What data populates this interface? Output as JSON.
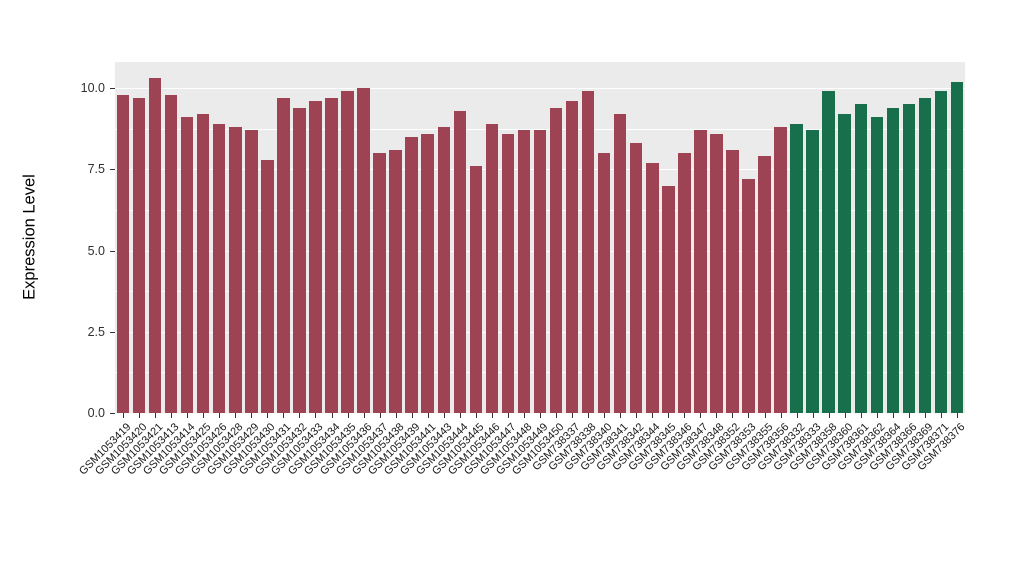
{
  "figure": {
    "background": "#ffffff",
    "panel_background": "#ebebeb",
    "grid_color": "#ffffff"
  },
  "chart_data": {
    "type": "bar",
    "title": "",
    "xlabel": "",
    "ylabel": "Expression Level",
    "ylim": [
      0,
      10.8
    ],
    "yticks": [
      "0.0",
      "2.5",
      "5.0",
      "7.5",
      "10.0"
    ],
    "ytick_values": [
      0,
      2.5,
      5,
      7.5,
      10
    ],
    "minor_tick_step": 1.25,
    "grid": true,
    "legend_position": "none",
    "group_colors": {
      "group1": "#9e4353",
      "group2": "#17704b"
    },
    "bars": [
      {
        "label": "GSM1053419",
        "value": 9.8,
        "group": "group1"
      },
      {
        "label": "GSM1053420",
        "value": 9.7,
        "group": "group1"
      },
      {
        "label": "GSM1053421",
        "value": 10.3,
        "group": "group1"
      },
      {
        "label": "GSM1053413",
        "value": 9.8,
        "group": "group1"
      },
      {
        "label": "GSM1053414",
        "value": 9.1,
        "group": "group1"
      },
      {
        "label": "GSM1053425",
        "value": 9.2,
        "group": "group1"
      },
      {
        "label": "GSM1053426",
        "value": 8.9,
        "group": "group1"
      },
      {
        "label": "GSM1053428",
        "value": 8.8,
        "group": "group1"
      },
      {
        "label": "GSM1053429",
        "value": 8.7,
        "group": "group1"
      },
      {
        "label": "GSM1053430",
        "value": 7.8,
        "group": "group1"
      },
      {
        "label": "GSM1053431",
        "value": 9.7,
        "group": "group1"
      },
      {
        "label": "GSM1053432",
        "value": 9.4,
        "group": "group1"
      },
      {
        "label": "GSM1053433",
        "value": 9.6,
        "group": "group1"
      },
      {
        "label": "GSM1053434",
        "value": 9.7,
        "group": "group1"
      },
      {
        "label": "GSM1053435",
        "value": 9.9,
        "group": "group1"
      },
      {
        "label": "GSM1053436",
        "value": 10.0,
        "group": "group1"
      },
      {
        "label": "GSM1053437",
        "value": 8.0,
        "group": "group1"
      },
      {
        "label": "GSM1053438",
        "value": 8.1,
        "group": "group1"
      },
      {
        "label": "GSM1053439",
        "value": 8.5,
        "group": "group1"
      },
      {
        "label": "GSM1053441",
        "value": 8.6,
        "group": "group1"
      },
      {
        "label": "GSM1053443",
        "value": 8.8,
        "group": "group1"
      },
      {
        "label": "GSM1053444",
        "value": 9.3,
        "group": "group1"
      },
      {
        "label": "GSM1053445",
        "value": 7.6,
        "group": "group1"
      },
      {
        "label": "GSM1053446",
        "value": 8.9,
        "group": "group1"
      },
      {
        "label": "GSM1053447",
        "value": 8.6,
        "group": "group1"
      },
      {
        "label": "GSM1053448",
        "value": 8.7,
        "group": "group1"
      },
      {
        "label": "GSM1053449",
        "value": 8.7,
        "group": "group1"
      },
      {
        "label": "GSM1053450",
        "value": 9.4,
        "group": "group1"
      },
      {
        "label": "GSM738337",
        "value": 9.6,
        "group": "group1"
      },
      {
        "label": "GSM738338",
        "value": 9.9,
        "group": "group1"
      },
      {
        "label": "GSM738340",
        "value": 8.0,
        "group": "group1"
      },
      {
        "label": "GSM738341",
        "value": 9.2,
        "group": "group1"
      },
      {
        "label": "GSM738342",
        "value": 8.3,
        "group": "group1"
      },
      {
        "label": "GSM738344",
        "value": 7.7,
        "group": "group1"
      },
      {
        "label": "GSM738345",
        "value": 7.0,
        "group": "group1"
      },
      {
        "label": "GSM738346",
        "value": 8.0,
        "group": "group1"
      },
      {
        "label": "GSM738347",
        "value": 8.7,
        "group": "group1"
      },
      {
        "label": "GSM738348",
        "value": 8.6,
        "group": "group1"
      },
      {
        "label": "GSM738352",
        "value": 8.1,
        "group": "group1"
      },
      {
        "label": "GSM738353",
        "value": 7.2,
        "group": "group1"
      },
      {
        "label": "GSM738355",
        "value": 7.9,
        "group": "group1"
      },
      {
        "label": "GSM738356",
        "value": 8.8,
        "group": "group1"
      },
      {
        "label": "GSM738332",
        "value": 8.9,
        "group": "group2"
      },
      {
        "label": "GSM738333",
        "value": 8.7,
        "group": "group2"
      },
      {
        "label": "GSM738358",
        "value": 9.9,
        "group": "group2"
      },
      {
        "label": "GSM738360",
        "value": 9.2,
        "group": "group2"
      },
      {
        "label": "GSM738361",
        "value": 9.5,
        "group": "group2"
      },
      {
        "label": "GSM738362",
        "value": 9.1,
        "group": "group2"
      },
      {
        "label": "GSM738364",
        "value": 9.4,
        "group": "group2"
      },
      {
        "label": "GSM738366",
        "value": 9.5,
        "group": "group2"
      },
      {
        "label": "GSM738369",
        "value": 9.7,
        "group": "group2"
      },
      {
        "label": "GSM738371",
        "value": 9.9,
        "group": "group2"
      },
      {
        "label": "GSM738376",
        "value": 10.2,
        "group": "group2"
      }
    ]
  }
}
